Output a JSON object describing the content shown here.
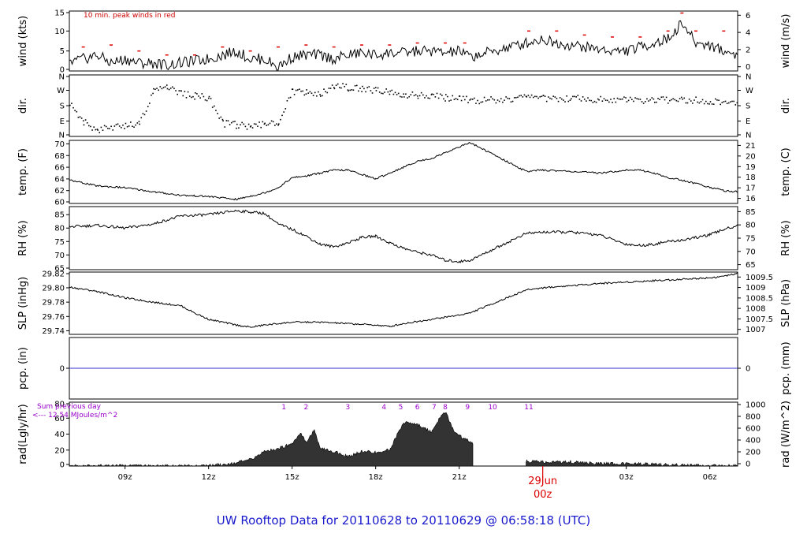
{
  "title": "UW Rooftop Data for 20110628  to  20110629 @ 06:58:18  (UTC)",
  "colors": {
    "line": "#000000",
    "gust": "#dd0000",
    "precip": "#3333cc",
    "day_label": "#dd0000",
    "hour_marks": "#9900cc",
    "title": "#1a1acc",
    "radiation_fill": "#333333"
  },
  "x_axis": {
    "ticks": [
      {
        "label": "09z",
        "hour": 9
      },
      {
        "label": "12z",
        "hour": 12
      },
      {
        "label": "15z",
        "hour": 15
      },
      {
        "label": "18z",
        "hour": 18
      },
      {
        "label": "21z",
        "hour": 21
      },
      {
        "label": "03z",
        "hour": 27
      },
      {
        "label": "06z",
        "hour": 30
      }
    ],
    "day_label": {
      "date": "29Jun",
      "time": "00z",
      "hour": 24
    },
    "range_hours": [
      7.0,
      31.0
    ]
  },
  "panels": [
    {
      "id": "wind",
      "left_label": "wind (kts)",
      "right_label": "wind (m/s)",
      "left_ticks": [
        "0",
        "5",
        "10",
        "15"
      ],
      "left_range": [
        0,
        15
      ],
      "right_ticks": [
        "0",
        "2",
        "4",
        "6"
      ],
      "note": "10 min. peak winds in red"
    },
    {
      "id": "dir",
      "left_label": "dir.",
      "right_label": "dir.",
      "left_ticks": [
        "N",
        "E",
        "S",
        "W",
        "N"
      ],
      "right_ticks": [
        "N",
        "E",
        "S",
        "W",
        "N"
      ],
      "left_range": [
        0,
        360
      ]
    },
    {
      "id": "temp",
      "left_label": "temp. (F)",
      "right_label": "temp. (C)",
      "left_ticks": [
        "60",
        "62",
        "64",
        "66",
        "68",
        "70"
      ],
      "left_range": [
        59.8,
        70.6
      ],
      "right_ticks": [
        "16",
        "17",
        "18",
        "19",
        "20",
        "21"
      ]
    },
    {
      "id": "rh",
      "left_label": "RH (%)",
      "right_label": "RH (%)",
      "left_ticks": [
        "65",
        "70",
        "75",
        "80",
        "85"
      ],
      "left_range": [
        64.5,
        88
      ],
      "right_ticks": [
        "65",
        "70",
        "75",
        "80",
        "85"
      ]
    },
    {
      "id": "slp",
      "left_label": "SLP (inHg)",
      "right_label": "SLP (hPa)",
      "left_ticks": [
        "29.74",
        "29.76",
        "29.78",
        "29.80",
        "29.82"
      ],
      "left_range": [
        29.735,
        29.822
      ],
      "right_ticks": [
        "1007",
        "1007.5",
        "1008",
        "1008.5",
        "1009",
        "1009.5"
      ]
    },
    {
      "id": "pcp",
      "left_label": "pcp. (in)",
      "right_label": "pcp. (mm)",
      "left_ticks": [
        "0"
      ],
      "right_ticks": [
        "0"
      ],
      "left_range": [
        -1,
        1
      ]
    },
    {
      "id": "rad",
      "left_label": "rad(Lgly/hr)",
      "right_label": "rad (W/m^2)",
      "left_ticks": [
        "0",
        "20",
        "40",
        "60",
        "80"
      ],
      "left_range": [
        0,
        80
      ],
      "right_ticks": [
        "0",
        "200",
        "400",
        "600",
        "800",
        "1000"
      ],
      "note_lines": [
        "Sum previous day",
        "<--- 12.54 MJoules/m^2"
      ],
      "hour_marks": [
        {
          "label": "1",
          "hour": 14.7
        },
        {
          "label": "2",
          "hour": 15.5
        },
        {
          "label": "3",
          "hour": 17.0
        },
        {
          "label": "4",
          "hour": 18.3
        },
        {
          "label": "5",
          "hour": 18.9
        },
        {
          "label": "6",
          "hour": 19.5
        },
        {
          "label": "7",
          "hour": 20.1
        },
        {
          "label": "8",
          "hour": 20.5
        },
        {
          "label": "9",
          "hour": 21.3
        },
        {
          "label": "10",
          "hour": 22.2
        },
        {
          "label": "11",
          "hour": 23.5
        }
      ]
    }
  ],
  "chart_data": {
    "type": "line",
    "x_unit": "hour UTC (hours after 24 fall on 29Jun)",
    "data_gap_hours": [
      21.5,
      23.4
    ],
    "series": [
      {
        "name": "wind (kts)",
        "x": [
          7.0,
          7.5,
          8.0,
          8.5,
          9.0,
          9.5,
          10.0,
          10.5,
          11.0,
          11.5,
          12.0,
          12.5,
          13.0,
          13.5,
          14.0,
          14.5,
          15.0,
          15.5,
          16.0,
          16.5,
          17.0,
          17.5,
          18.0,
          18.5,
          19.0,
          19.5,
          20.0,
          20.5,
          21.0,
          21.4,
          23.4,
          24.0,
          24.5,
          25.0,
          25.5,
          26.0,
          26.5,
          27.0,
          27.5,
          28.0,
          28.5,
          29.0,
          29.5,
          30.0,
          30.5,
          31.0
        ],
        "y": [
          2,
          3,
          4,
          2,
          3,
          2,
          2,
          1.5,
          2,
          2.5,
          3,
          4,
          5,
          3,
          3,
          1,
          3.5,
          4,
          4,
          3,
          4,
          4.5,
          4,
          4.5,
          4.5,
          5,
          5,
          4.5,
          5,
          3.5,
          7,
          8,
          7,
          6.5,
          6,
          5.5,
          5,
          5,
          6,
          7,
          8,
          12,
          7,
          6.5,
          5,
          4
        ]
      },
      {
        "name": "10 min. peak winds",
        "x": [
          7.5,
          8.5,
          9.5,
          10.5,
          11.5,
          12.5,
          13.5,
          14.5,
          15.5,
          16.5,
          17.5,
          18.5,
          19.5,
          20.5,
          21.2,
          23.5,
          24.5,
          25.5,
          26.5,
          27.5,
          28.5,
          29.0,
          29.5,
          30.5
        ],
        "y": [
          6,
          6.5,
          5,
          4,
          4,
          6,
          5,
          6,
          6.5,
          6,
          6.5,
          6.5,
          7,
          7,
          7,
          10,
          10,
          9,
          8.5,
          8.5,
          10,
          14.5,
          10,
          10
        ]
      },
      {
        "name": "dir. (deg)",
        "x": [
          7.0,
          7.5,
          8.0,
          9.0,
          9.5,
          10.0,
          10.5,
          11.0,
          11.5,
          12.0,
          12.5,
          13.0,
          13.5,
          14.0,
          14.5,
          15.0,
          15.5,
          16.0,
          16.5,
          17.0,
          17.5,
          18.0,
          18.5,
          19.0,
          19.5,
          20.0,
          20.5,
          21.0,
          21.4,
          23.4,
          24.0,
          25.0,
          26.0,
          27.0,
          28.0,
          29.0,
          30.0,
          31.0
        ],
        "y": [
          200,
          90,
          40,
          70,
          80,
          270,
          290,
          250,
          240,
          230,
          80,
          70,
          60,
          80,
          90,
          270,
          260,
          250,
          300,
          290,
          280,
          270,
          260,
          250,
          240,
          240,
          230,
          230,
          210,
          230,
          225,
          225,
          220,
          220,
          215,
          220,
          210,
          200
        ]
      },
      {
        "name": "temp. (F)",
        "x": [
          7.0,
          8.0,
          9.0,
          10.0,
          11.0,
          12.0,
          13.0,
          14.0,
          14.5,
          15.0,
          15.5,
          16.0,
          16.5,
          17.0,
          17.5,
          18.0,
          18.5,
          19.0,
          19.5,
          20.0,
          20.5,
          21.0,
          21.4,
          23.4,
          24.0,
          25.0,
          26.0,
          27.0,
          27.5,
          28.0,
          28.5,
          29.0,
          29.5,
          30.0,
          30.5,
          31.0
        ],
        "y": [
          63.8,
          62.8,
          62.5,
          61.8,
          61.2,
          61.0,
          60.5,
          61.6,
          62.5,
          64.2,
          64.5,
          65.0,
          65.5,
          65.5,
          64.8,
          64.0,
          65.0,
          66.0,
          67.0,
          67.5,
          68.5,
          69.5,
          70.2,
          65.3,
          65.5,
          65.3,
          65.0,
          65.5,
          65.5,
          65.0,
          64.2,
          63.8,
          63.2,
          62.6,
          62.0,
          61.8
        ]
      },
      {
        "name": "RH (%)",
        "x": [
          7.0,
          8.0,
          9.0,
          10.0,
          11.0,
          12.0,
          13.0,
          14.0,
          14.5,
          15.0,
          15.5,
          16.0,
          16.5,
          17.0,
          17.5,
          18.0,
          18.5,
          19.0,
          19.5,
          20.0,
          20.5,
          21.0,
          21.4,
          23.4,
          24.0,
          25.0,
          26.0,
          27.0,
          27.5,
          28.0,
          28.5,
          29.0,
          29.5,
          30.0,
          30.5,
          31.0
        ],
        "y": [
          80.5,
          81.0,
          80.0,
          81.5,
          84.5,
          85.0,
          86.5,
          85.5,
          81.5,
          79.5,
          77.0,
          74.0,
          73.0,
          74.5,
          76.5,
          77.0,
          74.5,
          72.5,
          71.0,
          70.0,
          68.0,
          67.5,
          68.0,
          78.0,
          78.5,
          78.5,
          77.5,
          74.0,
          73.5,
          74.0,
          75.0,
          75.5,
          76.5,
          77.5,
          79.5,
          81.0
        ]
      },
      {
        "name": "SLP (inHg)",
        "x": [
          7.0,
          8.0,
          9.0,
          10.0,
          11.0,
          11.5,
          12.0,
          13.0,
          13.5,
          14.0,
          15.0,
          16.0,
          17.0,
          18.0,
          18.5,
          19.0,
          20.0,
          21.0,
          21.4,
          23.4,
          24.0,
          25.0,
          26.0,
          27.0,
          28.0,
          29.0,
          30.0,
          30.5,
          31.0
        ],
        "y": [
          29.801,
          29.795,
          29.786,
          29.78,
          29.775,
          29.765,
          29.756,
          29.748,
          29.745,
          29.748,
          29.752,
          29.752,
          29.75,
          29.748,
          29.746,
          29.75,
          29.756,
          29.762,
          29.765,
          29.797,
          29.8,
          29.803,
          29.806,
          29.808,
          29.81,
          29.812,
          29.814,
          29.816,
          29.82
        ]
      },
      {
        "name": "pcp. (in)",
        "x": [
          7.0,
          31.0
        ],
        "y": [
          0,
          0
        ]
      },
      {
        "name": "rad (Lgly/hr)",
        "x": [
          7.0,
          11.5,
          12.0,
          12.5,
          13.0,
          13.5,
          14.0,
          14.5,
          15.0,
          15.3,
          15.5,
          15.8,
          16.0,
          16.5,
          17.0,
          17.5,
          18.0,
          18.5,
          19.0,
          19.5,
          20.0,
          20.3,
          20.5,
          20.8,
          21.0,
          21.4,
          23.4,
          24.0,
          25.0,
          26.0,
          27.0,
          28.0,
          29.0,
          30.0,
          31.0
        ],
        "y": [
          0,
          0,
          1,
          2,
          4,
          8,
          18,
          22,
          28,
          42,
          30,
          45,
          22,
          18,
          12,
          18,
          17,
          20,
          55,
          52,
          43,
          60,
          68,
          45,
          38,
          30,
          6,
          5,
          5,
          3,
          3,
          2,
          1,
          0.5,
          0.2
        ]
      }
    ]
  }
}
